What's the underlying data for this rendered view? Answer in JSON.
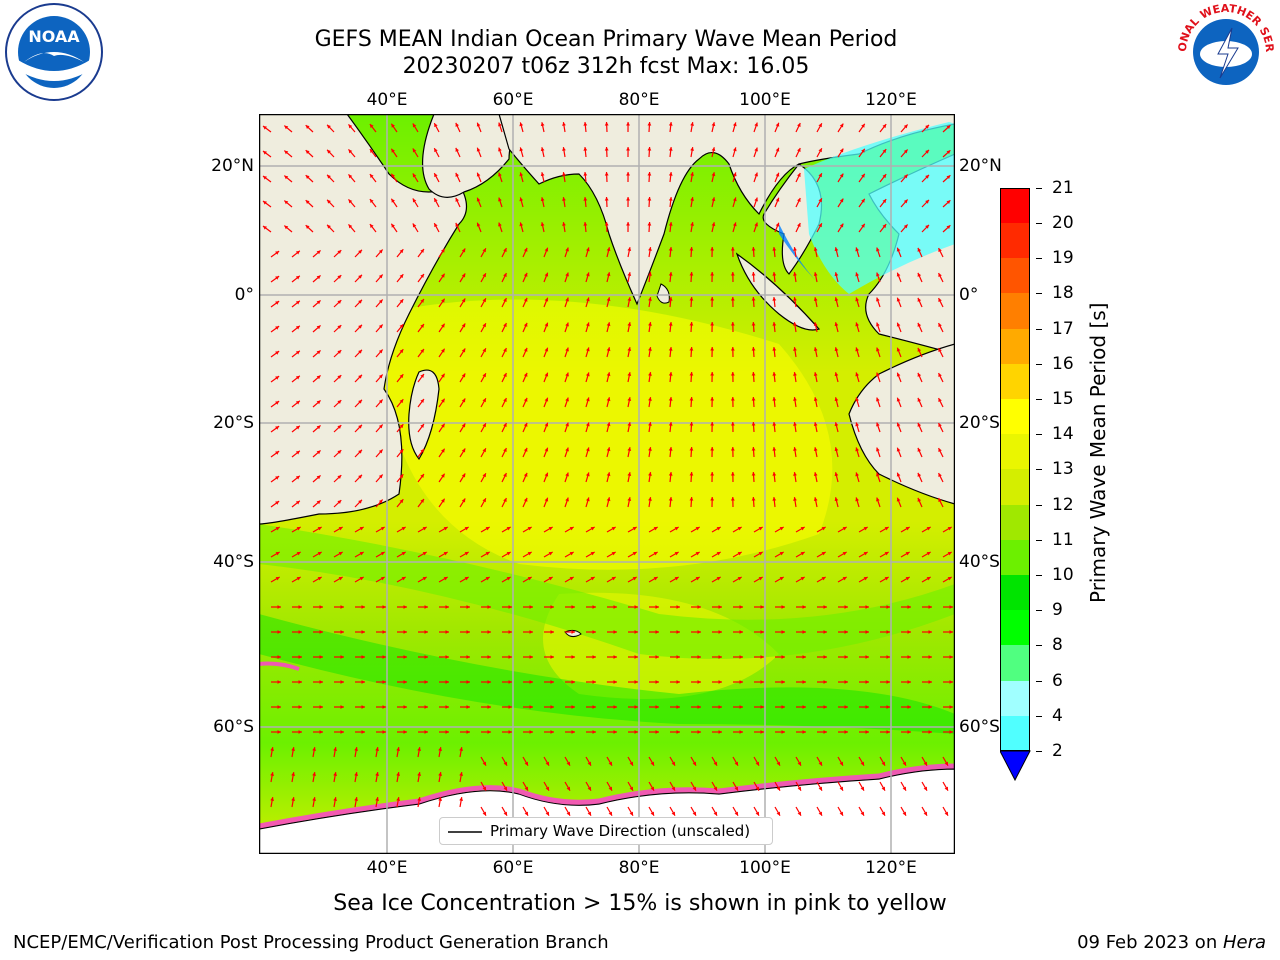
{
  "title": {
    "line1": "GEFS MEAN Indian Ocean Primary Wave Mean Period",
    "line2": "20230207 t06z 312h fcst   Max: 16.05"
  },
  "logos": {
    "left": {
      "icon": "noaa-logo-icon",
      "text": "NOAA"
    },
    "right": {
      "icon": "nws-logo-icon",
      "text": "NATIONAL WEATHER SERVICE"
    }
  },
  "map": {
    "lon_ticks_top": [
      "40°E",
      "60°E",
      "80°E",
      "100°E",
      "120°E"
    ],
    "lon_ticks_bottom": [
      "40°E",
      "60°E",
      "80°E",
      "100°E",
      "120°E"
    ],
    "lat_ticks_left": [
      "20°N",
      "0°",
      "20°S",
      "40°S",
      "60°S"
    ],
    "lat_ticks_right": [
      "20°N",
      "0°",
      "20°S",
      "40°S",
      "60°S"
    ],
    "legend": "Primary Wave Direction (unscaled)",
    "colors": {
      "land": "#efedde",
      "arrow": "#ff0000"
    }
  },
  "colorbar": {
    "label": "Primary Wave Mean Period [s]",
    "ticks": [
      "21",
      "20",
      "19",
      "18",
      "17",
      "16",
      "15",
      "14",
      "13",
      "12",
      "11",
      "10",
      "9",
      "8",
      "6",
      "4",
      "2"
    ],
    "colors": [
      "#ff0000",
      "#ff2a00",
      "#ff5500",
      "#ff7f00",
      "#ffaa00",
      "#ffd400",
      "#ffff00",
      "#eaf600",
      "#d4ee00",
      "#a0e800",
      "#6cf000",
      "#00e400",
      "#00ff00",
      "#50ff80",
      "#a0ffff",
      "#50ffff",
      "#00ffff",
      "#0080ff"
    ]
  },
  "subtitle": "Sea Ice Concentration > 15% is shown in pink to yellow",
  "footer": {
    "left": "NCEP/EMC/Verification Post Processing Product Generation Branch",
    "right_date": "09 Feb 2023 on ",
    "right_host": "Hera"
  }
}
